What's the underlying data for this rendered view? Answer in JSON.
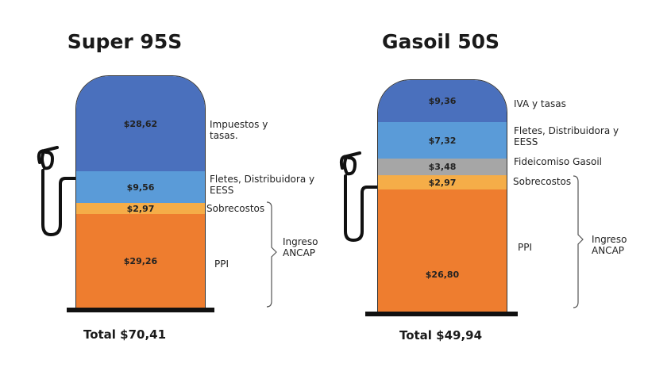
{
  "colors": {
    "taxes": "#4a70bd",
    "freight": "#5a9bd8",
    "fund": "#a6a6a6",
    "overcost": "#f5ad48",
    "ppi": "#ee7d2f"
  },
  "chart_data": [
    {
      "type": "bar",
      "title": "Super 95S",
      "total": "Total $70,41",
      "segments": [
        {
          "label": "Impuestos y tasas.",
          "value": 28.62,
          "value_label": "$28,62"
        },
        {
          "label": "Fletes, Distribuidora y EESS",
          "value": 9.56,
          "value_label": "$9,56"
        },
        {
          "label": "Sobrecostos",
          "value": 2.97,
          "value_label": "$2,97"
        },
        {
          "label": "PPI",
          "value": 29.26,
          "value_label": "$29,26"
        }
      ],
      "group_label": "Ingreso ANCAP"
    },
    {
      "type": "bar",
      "title": "Gasoil 50S",
      "total": "Total $49,94",
      "segments": [
        {
          "label": "IVA y tasas",
          "value": 9.36,
          "value_label": "$9,36"
        },
        {
          "label": "Fletes, Distribuidora y EESS",
          "value": 7.32,
          "value_label": "$7,32"
        },
        {
          "label": "Fideicomiso Gasoil",
          "value": 3.48,
          "value_label": "$3,48"
        },
        {
          "label": "Sobrecostos",
          "value": 2.97,
          "value_label": "$2,97"
        },
        {
          "label": "PPI",
          "value": 26.8,
          "value_label": "$26,80"
        }
      ],
      "group_label": "Ingreso ANCAP"
    }
  ]
}
